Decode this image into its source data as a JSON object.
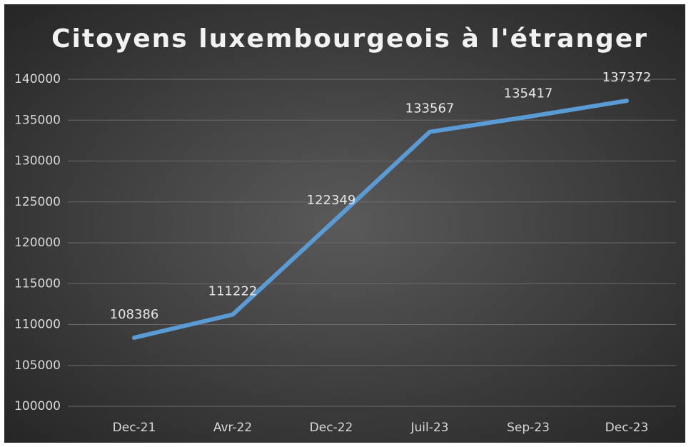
{
  "chart_data": {
    "type": "line",
    "title": "Citoyens luxembourgeois à l'étranger",
    "categories": [
      "Dec-21",
      "Avr-22",
      "Dec-22",
      "Juil-23",
      "Sep-23",
      "Dec-23"
    ],
    "series": [
      {
        "name": "Citoyens",
        "color": "#5b9bd5",
        "values": [
          108386,
          111222,
          122349,
          133567,
          135417,
          137372
        ]
      }
    ],
    "ylim": [
      100000,
      140000
    ],
    "yticks": [
      100000,
      105000,
      110000,
      115000,
      120000,
      125000,
      130000,
      135000,
      140000
    ],
    "grid": true
  }
}
